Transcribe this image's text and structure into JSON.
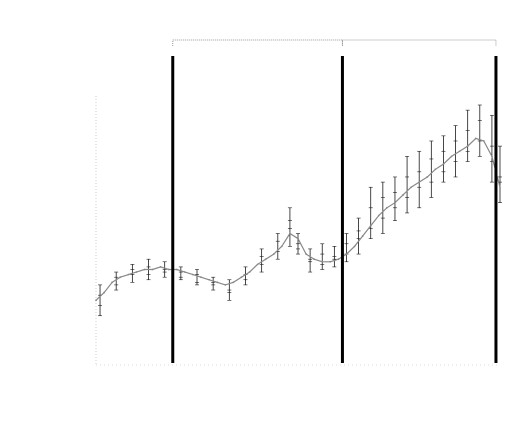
{
  "chart_data": {
    "type": "line",
    "title": "",
    "xlabel": "",
    "ylabel": "",
    "ylim": [
      0,
      100
    ],
    "xlim": [
      0,
      100
    ],
    "grid": false,
    "legend": "none",
    "colors": {
      "line": "#888888",
      "marker": "#1a1a1a",
      "divider": "#000000",
      "bracket": "#9a9a9a"
    },
    "series": [
      {
        "x": [
          0,
          2,
          4,
          6,
          8,
          10,
          12,
          14,
          16,
          18,
          20,
          22,
          24,
          26,
          28,
          30,
          32,
          34,
          36,
          38,
          40,
          42,
          44,
          46,
          48,
          50,
          52,
          54,
          56,
          58,
          60,
          62,
          64,
          66,
          68,
          70,
          72,
          74,
          76,
          78,
          80,
          82,
          84,
          86,
          88,
          90,
          92,
          94,
          96,
          98,
          100
        ],
        "values": [
          24,
          27,
          31,
          33,
          34,
          35,
          36,
          36,
          37,
          36,
          36,
          35,
          34,
          33,
          32,
          31,
          30,
          31,
          33,
          35,
          38,
          40,
          42,
          45,
          50,
          48,
          42,
          40,
          39,
          39,
          40,
          42,
          45,
          49,
          53,
          57,
          60,
          62,
          65,
          68,
          70,
          72,
          75,
          77,
          80,
          82,
          84,
          87,
          86,
          80,
          68
        ]
      }
    ],
    "markers": [
      {
        "x": 1,
        "values": [
          18,
          22,
          26,
          30
        ]
      },
      {
        "x": 5,
        "values": [
          30,
          35,
          28,
          33
        ]
      },
      {
        "x": 9,
        "values": [
          31,
          38,
          34,
          36
        ]
      },
      {
        "x": 13,
        "values": [
          32,
          40,
          34,
          37
        ]
      },
      {
        "x": 17,
        "values": [
          33,
          39,
          35,
          36
        ]
      },
      {
        "x": 21,
        "values": [
          32,
          37,
          35,
          33
        ]
      },
      {
        "x": 25,
        "values": [
          30,
          36,
          31,
          34
        ]
      },
      {
        "x": 29,
        "values": [
          28,
          33,
          30,
          31
        ]
      },
      {
        "x": 33,
        "values": [
          24,
          32,
          28,
          27
        ]
      },
      {
        "x": 37,
        "values": [
          30,
          37,
          34,
          32
        ]
      },
      {
        "x": 41,
        "values": [
          35,
          44,
          38,
          41
        ]
      },
      {
        "x": 45,
        "values": [
          40,
          50,
          43,
          47
        ]
      },
      {
        "x": 48,
        "values": [
          45,
          60,
          52,
          55
        ]
      },
      {
        "x": 50,
        "values": [
          42,
          50,
          46,
          44
        ]
      },
      {
        "x": 53,
        "values": [
          35,
          44,
          40,
          39
        ]
      },
      {
        "x": 56,
        "values": [
          36,
          46,
          38,
          42
        ]
      },
      {
        "x": 59,
        "values": [
          37,
          45,
          40,
          41
        ]
      },
      {
        "x": 62,
        "values": [
          39,
          50,
          42,
          46
        ]
      },
      {
        "x": 65,
        "values": [
          42,
          56,
          48,
          51
        ]
      },
      {
        "x": 68,
        "values": [
          48,
          68,
          52,
          60
        ]
      },
      {
        "x": 71,
        "values": [
          50,
          70,
          56,
          64
        ]
      },
      {
        "x": 74,
        "values": [
          55,
          72,
          60,
          66
        ]
      },
      {
        "x": 77,
        "values": [
          58,
          80,
          64,
          72
        ]
      },
      {
        "x": 80,
        "values": [
          60,
          82,
          68,
          74
        ]
      },
      {
        "x": 83,
        "values": [
          64,
          86,
          70,
          79
        ]
      },
      {
        "x": 86,
        "values": [
          70,
          88,
          74,
          82
        ]
      },
      {
        "x": 89,
        "values": [
          72,
          92,
          78,
          86
        ]
      },
      {
        "x": 92,
        "values": [
          78,
          98,
          82,
          90
        ]
      },
      {
        "x": 95,
        "values": [
          80,
          100,
          86,
          94
        ]
      },
      {
        "x": 98,
        "values": [
          70,
          96,
          78,
          84
        ]
      },
      {
        "x": 100,
        "values": [
          62,
          84,
          70,
          72
        ]
      }
    ],
    "dividers": [
      19,
      61,
      99
    ],
    "brackets": [
      {
        "from": 19,
        "to": 61
      },
      {
        "from": 61,
        "to": 99
      }
    ]
  }
}
